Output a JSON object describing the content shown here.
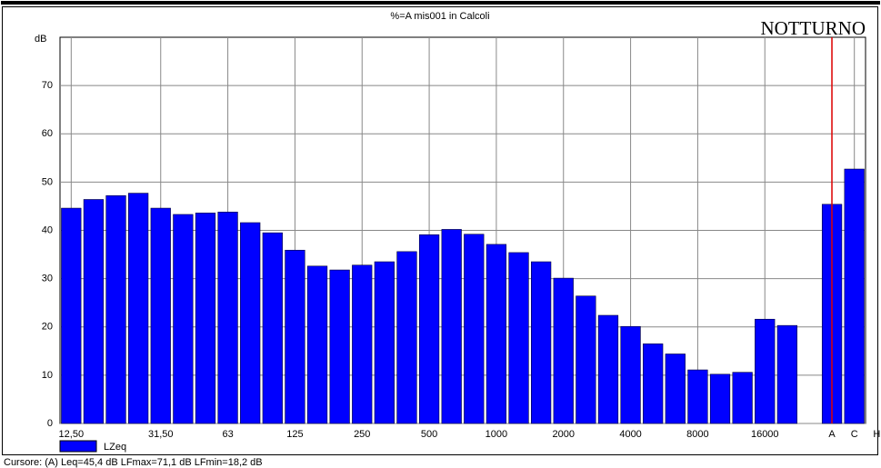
{
  "chart_data": {
    "type": "bar",
    "title": "%=A mis001 in Calcoli",
    "annotation": "NOTTURNO",
    "y_label": "dB",
    "footer": "Cursore: (A)  Leq=45,4 dB  LFmax=71,1 dB  LFmin=18,2 dB",
    "categories": [
      "12,50",
      null,
      null,
      null,
      "31,50",
      null,
      null,
      "63",
      null,
      null,
      "125",
      null,
      null,
      "250",
      null,
      null,
      "500",
      null,
      null,
      "1000",
      null,
      null,
      "2000",
      null,
      null,
      "4000",
      null,
      null,
      "8000",
      null,
      null,
      "16000",
      null,
      null,
      "A",
      "C",
      "H"
    ],
    "series": [
      {
        "name": "LZeq",
        "color": "#0000ff",
        "values": [
          44.6,
          46.4,
          47.2,
          47.7,
          44.6,
          43.3,
          43.6,
          43.8,
          41.6,
          39.5,
          35.9,
          32.6,
          31.8,
          32.8,
          33.5,
          35.6,
          39.1,
          40.2,
          39.2,
          37.1,
          35.4,
          33.5,
          30.1,
          26.4,
          22.4,
          20.1,
          16.5,
          14.4,
          11.1,
          10.2,
          10.6,
          21.6,
          20.3,
          null,
          45.4,
          52.7,
          null
        ]
      }
    ],
    "ylim": [
      0,
      80
    ],
    "yticks": [
      0,
      10,
      20,
      30,
      40,
      50,
      60,
      70
    ],
    "grid": true
  }
}
